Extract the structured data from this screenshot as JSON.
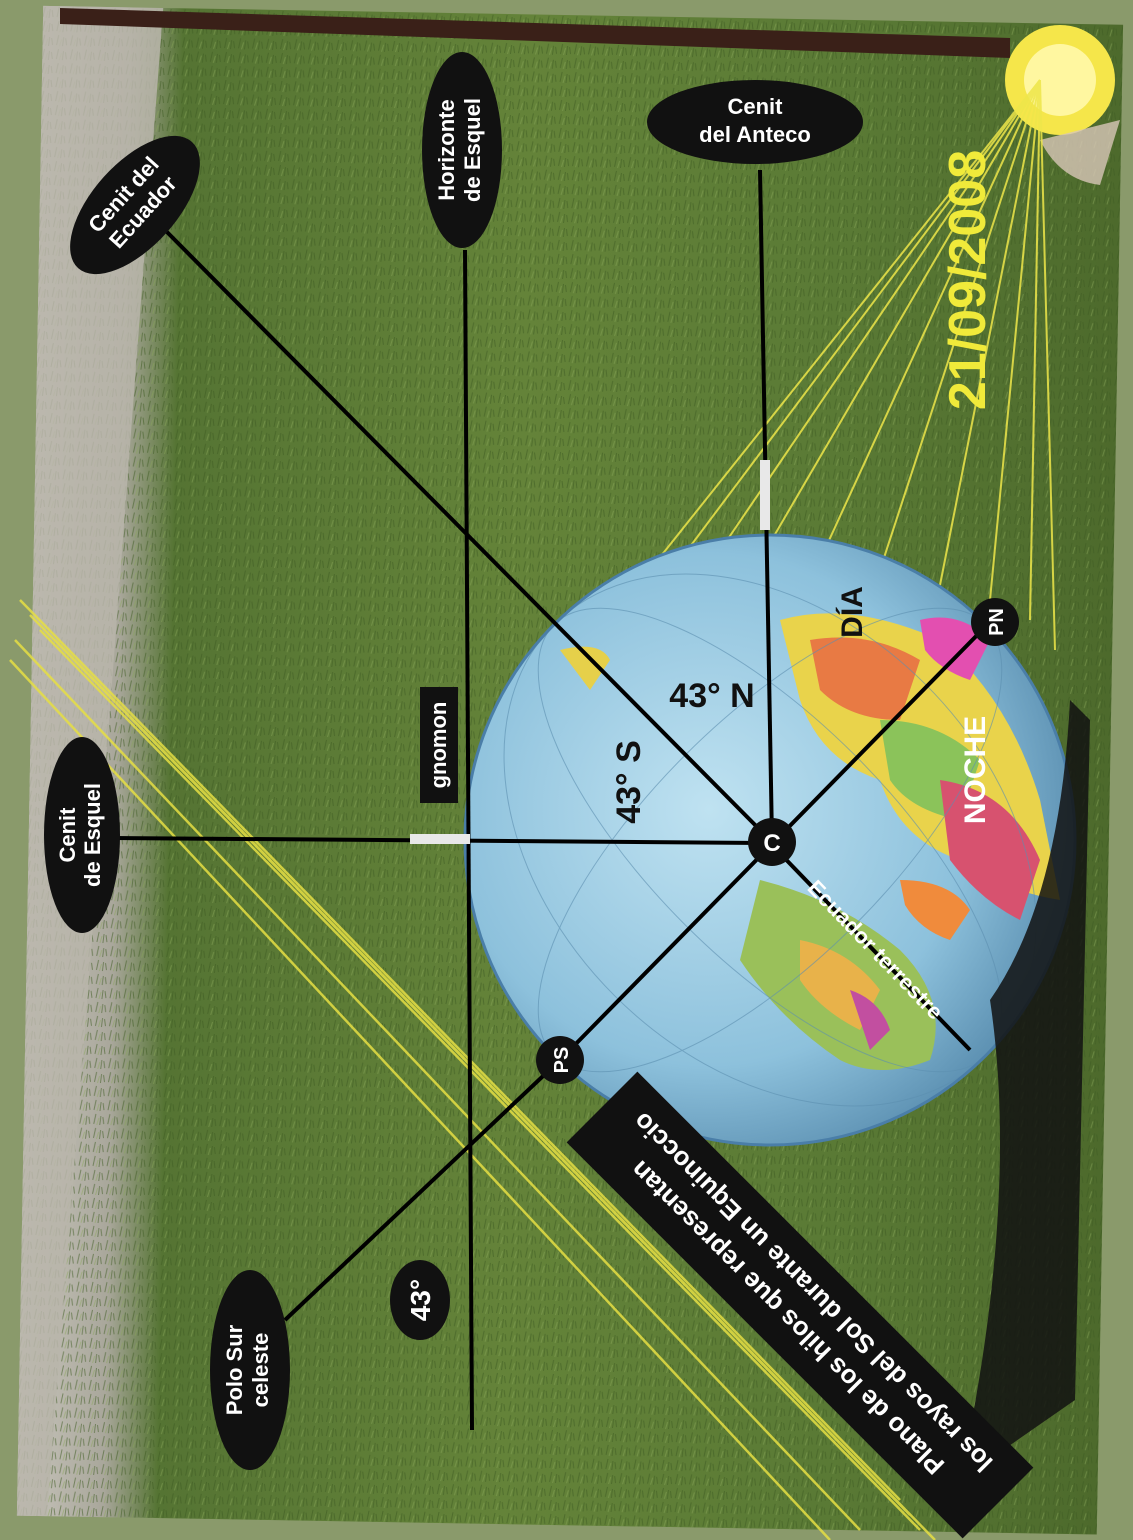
{
  "labels": {
    "cenit_ecuador": [
      "Cenit del",
      "Ecuador"
    ],
    "horizonte_esquel": [
      "Horizonte",
      "de Esquel"
    ],
    "cenit_anteco": [
      "Cenit",
      "del Anteco"
    ],
    "cenit_esquel": [
      "Cenit",
      "de Esquel"
    ],
    "polo_sur": [
      "Polo Sur",
      "celeste"
    ],
    "gnomon": "gnomon",
    "angle_43": "43°",
    "angle_43_n": "43° N",
    "angle_43_s": "43° S",
    "dia": "DÍA",
    "noche": "NOCHE",
    "center": "C",
    "pn": "PN",
    "ps": "PS",
    "ecuador_terrestre": "Ecuador terrestre",
    "plane_caption": [
      "Plano de los hilos que representan",
      "los rayos del Sol durante un Equinoccio"
    ],
    "date": "21/09/2008"
  },
  "colors": {
    "grass": "#5f7d3a",
    "grass_dark": "#3f5a25",
    "gravel": "#b9b6ad",
    "frame": "#8a9a6b",
    "ocean": "#8fc3de",
    "sun_threads": "#f2ea4a",
    "label_bg": "#111111",
    "label_text": "#ffffff"
  }
}
